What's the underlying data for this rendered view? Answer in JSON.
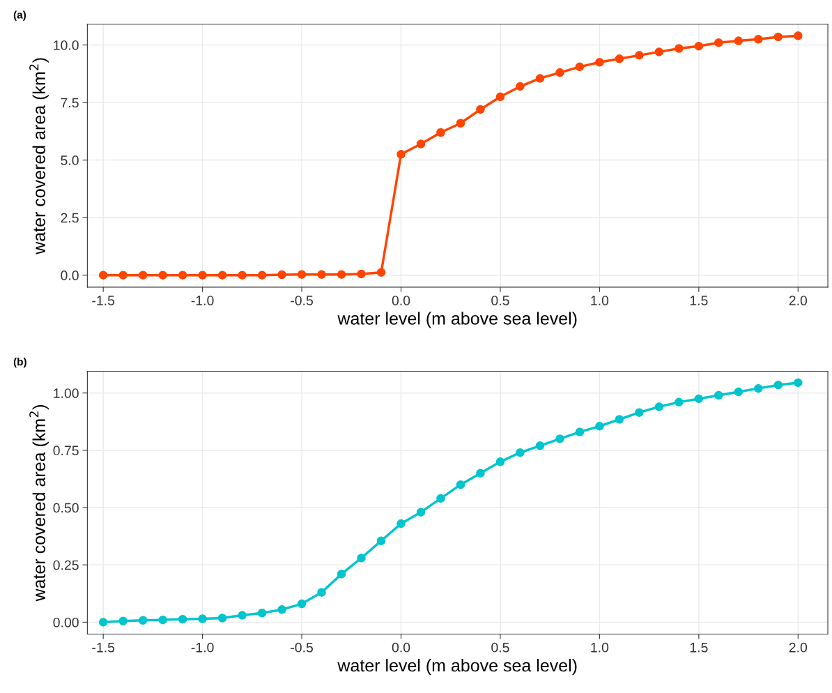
{
  "chart_data": [
    {
      "type": "line",
      "title": "(a)",
      "xlabel": "water level (m above sea level)",
      "ylabel": "water covered area (km$^{2}$)",
      "x": [
        -1.5,
        -1.4,
        -1.3,
        -1.2,
        -1.1,
        -1.0,
        -0.9,
        -0.8,
        -0.7,
        -0.6,
        -0.5,
        -0.4,
        -0.3,
        -0.2,
        -0.1,
        0.0,
        0.1,
        0.2,
        0.3,
        0.4,
        0.5,
        0.6,
        0.7,
        0.8,
        0.9,
        1.0,
        1.1,
        1.2,
        1.3,
        1.4,
        1.5,
        1.6,
        1.7,
        1.8,
        1.9,
        2.0
      ],
      "series": [
        {
          "color": "#ff4500",
          "values": [
            0,
            0,
            0,
            0,
            0,
            0,
            0,
            0,
            0,
            0.02,
            0.03,
            0.03,
            0.03,
            0.05,
            0.12,
            5.25,
            5.7,
            6.2,
            6.6,
            7.2,
            7.75,
            8.2,
            8.55,
            8.8,
            9.05,
            9.25,
            9.4,
            9.55,
            9.7,
            9.85,
            9.95,
            10.1,
            10.18,
            10.25,
            10.35,
            10.4
          ]
        }
      ],
      "xlim": [
        -1.58,
        2.15
      ],
      "ylim": [
        -0.52,
        10.9
      ],
      "xticks": [
        {
          "value": -1.5,
          "label": "-1.5"
        },
        {
          "value": -1.0,
          "label": "-1.0"
        },
        {
          "value": -0.5,
          "label": "-0.5"
        },
        {
          "value": 0.0,
          "label": "0.0"
        },
        {
          "value": 0.5,
          "label": "0.5"
        },
        {
          "value": 1.0,
          "label": "1.0"
        },
        {
          "value": 1.5,
          "label": "1.5"
        },
        {
          "value": 2.0,
          "label": "2.0"
        }
      ],
      "yticks": [
        {
          "value": 0,
          "label": "0.0"
        },
        {
          "value": 2.5,
          "label": "2.5"
        },
        {
          "value": 5,
          "label": "5.0"
        },
        {
          "value": 7.5,
          "label": "7.5"
        },
        {
          "value": 10,
          "label": "10.0"
        }
      ],
      "grid": true,
      "marker": "circle",
      "line_style": "solid",
      "legend": false
    },
    {
      "type": "line",
      "title": "(b)",
      "xlabel": "water level (m above sea level)",
      "ylabel": "water covered area (km$^{2}$)",
      "x": [
        -1.5,
        -1.4,
        -1.3,
        -1.2,
        -1.1,
        -1.0,
        -0.9,
        -0.8,
        -0.7,
        -0.6,
        -0.5,
        -0.4,
        -0.3,
        -0.2,
        -0.1,
        0.0,
        0.1,
        0.2,
        0.3,
        0.4,
        0.5,
        0.6,
        0.7,
        0.8,
        0.9,
        1.0,
        1.1,
        1.2,
        1.3,
        1.4,
        1.5,
        1.6,
        1.7,
        1.8,
        1.9,
        2.0
      ],
      "series": [
        {
          "color": "#00c5cd",
          "values": [
            0,
            0.005,
            0.008,
            0.01,
            0.013,
            0.015,
            0.018,
            0.03,
            0.04,
            0.055,
            0.08,
            0.13,
            0.21,
            0.28,
            0.355,
            0.43,
            0.48,
            0.54,
            0.6,
            0.65,
            0.7,
            0.74,
            0.77,
            0.8,
            0.83,
            0.855,
            0.885,
            0.915,
            0.94,
            0.96,
            0.975,
            0.99,
            1.005,
            1.02,
            1.035,
            1.045
          ]
        }
      ],
      "xlim": [
        -1.58,
        2.15
      ],
      "ylim": [
        -0.052,
        1.095
      ],
      "xticks": [
        {
          "value": -1.5,
          "label": "-1.5"
        },
        {
          "value": -1.0,
          "label": "-1.0"
        },
        {
          "value": -0.5,
          "label": "-0.5"
        },
        {
          "value": 0.0,
          "label": "0.0"
        },
        {
          "value": 0.5,
          "label": "0.5"
        },
        {
          "value": 1.0,
          "label": "1.0"
        },
        {
          "value": 1.5,
          "label": "1.5"
        },
        {
          "value": 2.0,
          "label": "2.0"
        }
      ],
      "yticks": [
        {
          "value": 0,
          "label": "0.00"
        },
        {
          "value": 0.25,
          "label": "0.25"
        },
        {
          "value": 0.5,
          "label": "0.50"
        },
        {
          "value": 0.75,
          "label": "0.75"
        },
        {
          "value": 1.0,
          "label": "1.00"
        }
      ],
      "grid": true,
      "marker": "circle",
      "line_style": "solid",
      "legend": false
    }
  ]
}
